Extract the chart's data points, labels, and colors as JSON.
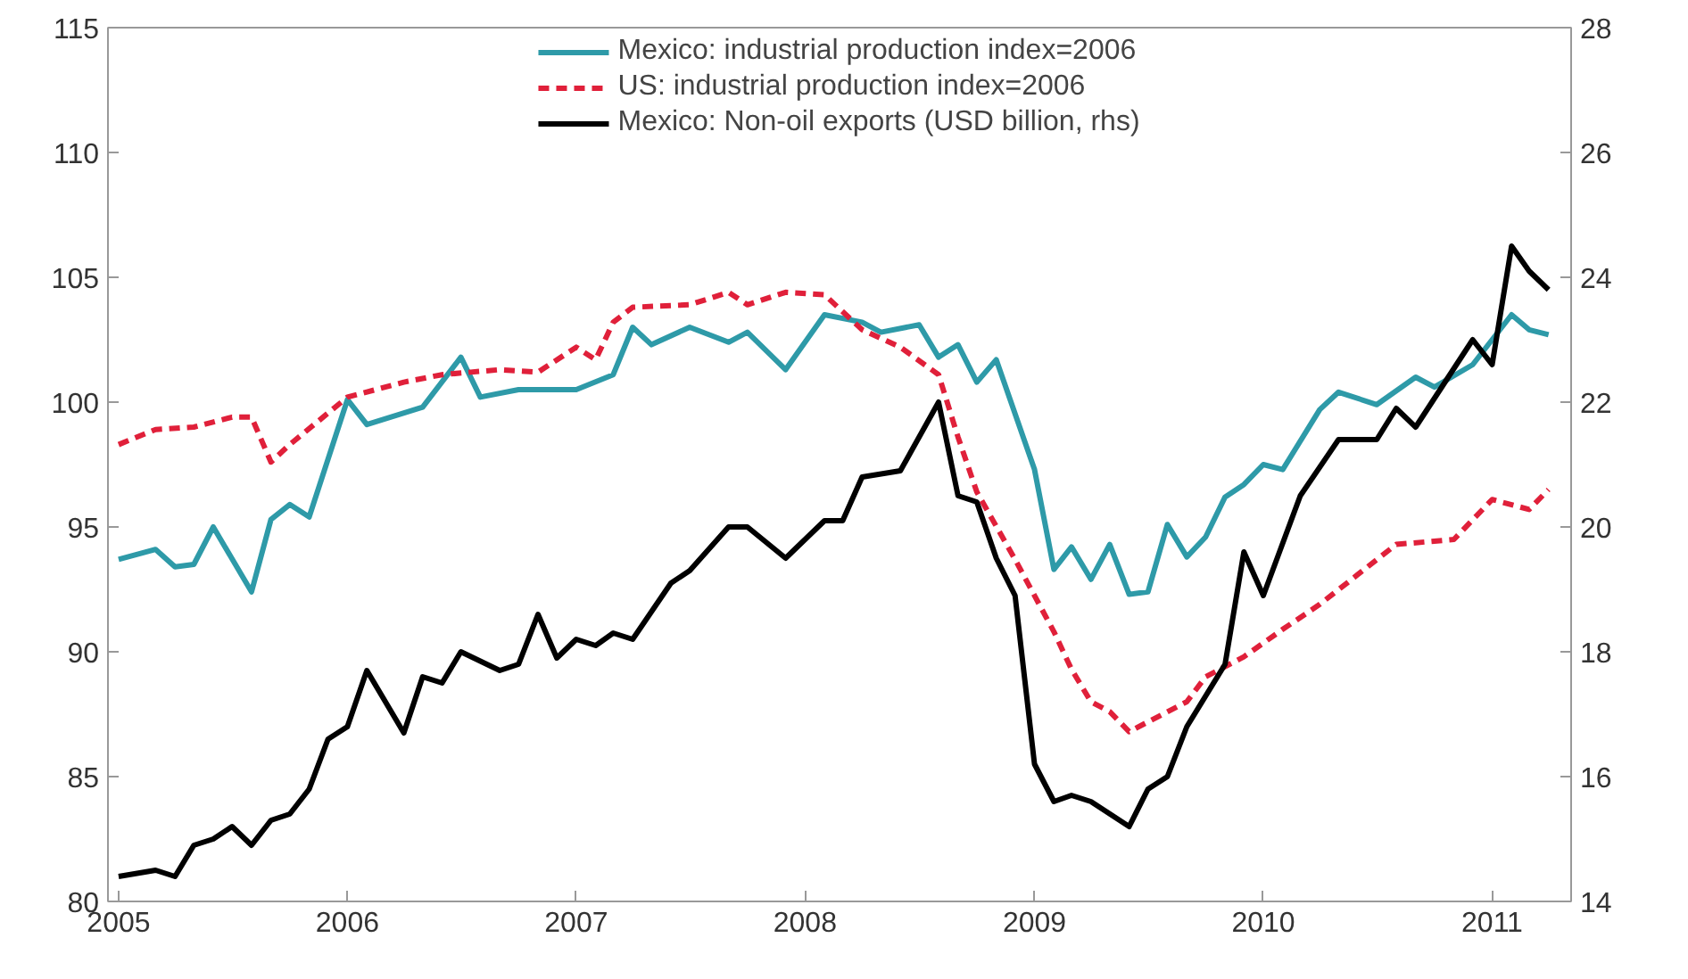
{
  "chart_data": {
    "type": "line",
    "xlim": [
      "2004-12-15",
      "2011-05-07"
    ],
    "xticks": [
      {
        "value": "2005-01-01",
        "label": "2005"
      },
      {
        "value": "2006-01-01",
        "label": "2006"
      },
      {
        "value": "2007-01-01",
        "label": "2007"
      },
      {
        "value": "2008-01-01",
        "label": "2008"
      },
      {
        "value": "2009-01-01",
        "label": "2009"
      },
      {
        "value": "2010-01-01",
        "label": "2010"
      },
      {
        "value": "2011-01-01",
        "label": "2011"
      }
    ],
    "ylim": [
      80,
      115
    ],
    "yticks": [
      80,
      85,
      90,
      95,
      100,
      105,
      110,
      115
    ],
    "y2lim": [
      14,
      28
    ],
    "y2ticks": [
      14,
      16,
      18,
      20,
      22,
      24,
      26,
      28
    ],
    "grid": false,
    "legend": "top",
    "series": [
      {
        "name": "Mexico: industrial production index=2006",
        "color": "#2e9aa8",
        "line_style": "solid",
        "x": [
          "2005-01",
          "2005-03",
          "2005-04",
          "2005-05",
          "2005-06",
          "2005-08",
          "2005-09",
          "2005-10",
          "2005-11",
          "2006-01",
          "2006-02",
          "2006-05",
          "2006-07",
          "2006-08",
          "2006-10",
          "2007-01",
          "2007-03",
          "2007-04",
          "2007-05",
          "2007-07",
          "2007-09",
          "2007-10",
          "2007-12",
          "2008-02",
          "2008-04",
          "2008-05",
          "2008-07",
          "2008-08",
          "2008-09",
          "2008-10",
          "2008-11",
          "2009-01",
          "2009-02",
          "2009-03",
          "2009-04",
          "2009-05",
          "2009-06",
          "2009-07",
          "2009-08",
          "2009-09",
          "2009-10",
          "2009-11",
          "2009-12",
          "2010-01",
          "2010-02",
          "2010-04",
          "2010-05",
          "2010-07",
          "2010-09",
          "2010-10",
          "2010-12",
          "2011-02",
          "2011-03",
          "2011-04"
        ],
        "values": [
          93.7,
          94.1,
          93.4,
          93.5,
          95.0,
          92.4,
          95.3,
          95.9,
          95.4,
          100.1,
          99.1,
          99.8,
          101.8,
          100.2,
          100.5,
          100.5,
          101.1,
          103.0,
          102.3,
          103.0,
          102.4,
          102.8,
          101.3,
          103.5,
          103.2,
          102.8,
          103.1,
          101.8,
          102.3,
          100.8,
          101.7,
          97.3,
          93.3,
          94.2,
          92.9,
          94.3,
          92.3,
          92.4,
          95.1,
          93.8,
          94.6,
          96.2,
          96.7,
          97.5,
          97.3,
          99.7,
          100.4,
          99.9,
          101.0,
          100.6,
          101.5,
          103.5,
          102.9,
          102.7
        ]
      },
      {
        "name": "US: industrial production index=2006",
        "color": "#e0203a",
        "line_style": "dashed",
        "x": [
          "2005-01",
          "2005-03",
          "2005-05",
          "2005-07",
          "2005-08",
          "2005-09",
          "2005-10",
          "2006-01",
          "2006-04",
          "2006-06",
          "2006-09",
          "2006-11",
          "2007-01",
          "2007-02",
          "2007-03",
          "2007-04",
          "2007-07",
          "2007-09",
          "2007-10",
          "2007-12",
          "2008-02",
          "2008-04",
          "2008-06",
          "2008-08",
          "2008-09",
          "2008-10",
          "2008-12",
          "2009-02",
          "2009-03",
          "2009-04",
          "2009-05",
          "2009-06",
          "2009-09",
          "2009-10",
          "2009-12",
          "2010-02",
          "2010-04",
          "2010-06",
          "2010-08",
          "2010-11",
          "2011-01",
          "2011-03",
          "2011-04"
        ],
        "values": [
          98.3,
          98.9,
          99.0,
          99.4,
          99.4,
          97.6,
          98.3,
          100.2,
          100.8,
          101.1,
          101.3,
          101.2,
          102.2,
          101.7,
          103.2,
          103.8,
          103.9,
          104.4,
          103.9,
          104.4,
          104.3,
          102.9,
          102.2,
          101.1,
          98.6,
          96.4,
          93.7,
          90.8,
          89.3,
          88.0,
          87.6,
          86.8,
          88.0,
          89.0,
          89.8,
          90.9,
          91.9,
          93.1,
          94.3,
          94.5,
          96.1,
          95.7,
          96.5
        ]
      },
      {
        "name": "Mexico: Non-oil exports (USD billion, rhs)",
        "color": "#000000",
        "line_style": "solid",
        "axis": "y2",
        "x": [
          "2005-01",
          "2005-03",
          "2005-04",
          "2005-05",
          "2005-06",
          "2005-07",
          "2005-08",
          "2005-09",
          "2005-10",
          "2005-11",
          "2005-12",
          "2006-01",
          "2006-02",
          "2006-04",
          "2006-05",
          "2006-06",
          "2006-07",
          "2006-09",
          "2006-10",
          "2006-11",
          "2006-12",
          "2007-01",
          "2007-02",
          "2007-03",
          "2007-04",
          "2007-06",
          "2007-07",
          "2007-09",
          "2007-10",
          "2007-12",
          "2008-02",
          "2008-03",
          "2008-04",
          "2008-06",
          "2008-08",
          "2008-09",
          "2008-10",
          "2008-11",
          "2008-12",
          "2009-01",
          "2009-02",
          "2009-03",
          "2009-04",
          "2009-06",
          "2009-07",
          "2009-08",
          "2009-09",
          "2009-11",
          "2009-12",
          "2010-01",
          "2010-03",
          "2010-05",
          "2010-07",
          "2010-08",
          "2010-09",
          "2010-12",
          "2011-01",
          "2011-02",
          "2011-03",
          "2011-04"
        ],
        "values": [
          14.4,
          14.5,
          14.4,
          14.9,
          15.0,
          15.2,
          14.9,
          15.3,
          15.4,
          15.8,
          16.6,
          16.8,
          17.7,
          16.7,
          17.6,
          17.5,
          18.0,
          17.7,
          17.8,
          18.6,
          17.9,
          18.2,
          18.1,
          18.3,
          18.2,
          19.1,
          19.3,
          20.0,
          20.0,
          19.5,
          20.1,
          20.1,
          20.8,
          20.9,
          22.0,
          20.5,
          20.4,
          19.5,
          18.9,
          16.2,
          15.6,
          15.7,
          15.6,
          15.2,
          15.8,
          16.0,
          16.8,
          17.8,
          19.6,
          18.9,
          20.5,
          21.4,
          21.4,
          21.9,
          21.6,
          23.0,
          22.6,
          24.5,
          24.1,
          23.8
        ]
      }
    ]
  }
}
